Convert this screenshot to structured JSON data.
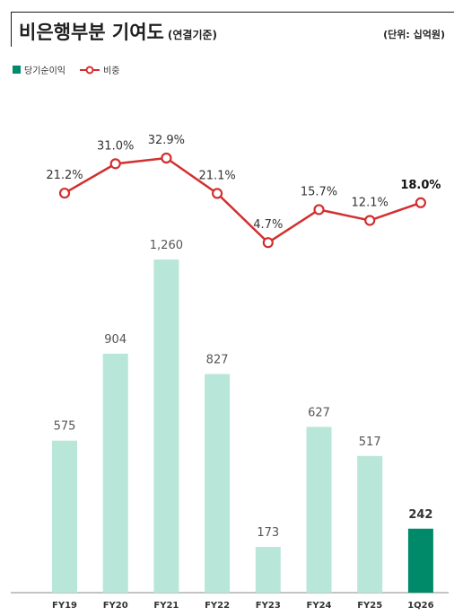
{
  "header": {
    "title": "비은행부분 기여도",
    "subtitle": "(연결기준)",
    "unit": "(단위: 십억원)"
  },
  "legend": {
    "bar": "당기순이익",
    "line": "비중"
  },
  "colors": {
    "bar": "#b8e6d8",
    "bar_highlight": "#008a6a",
    "line": "#d32f2f",
    "axis": "#888888"
  },
  "chart_data": {
    "type": "bar",
    "categories": [
      "FY19",
      "FY20",
      "FY21",
      "FY22",
      "FY23",
      "FY24",
      "FY25",
      "1Q26"
    ],
    "series": [
      {
        "name": "당기순이익",
        "type": "bar",
        "values": [
          575,
          904,
          1260,
          827,
          173,
          627,
          517,
          242
        ],
        "labels": [
          "575",
          "904",
          "1,260",
          "827",
          "173",
          "627",
          "517",
          "242"
        ]
      },
      {
        "name": "비중",
        "type": "line",
        "values": [
          21.2,
          31.0,
          32.9,
          21.1,
          4.7,
          15.7,
          12.1,
          18.0
        ],
        "labels": [
          "21.2%",
          "31.0%",
          "32.9%",
          "21.1%",
          "4.7%",
          "15.7%",
          "12.1%",
          "18.0%"
        ]
      }
    ],
    "highlight_index": 7,
    "legend_position": "top-left",
    "grid": false
  }
}
